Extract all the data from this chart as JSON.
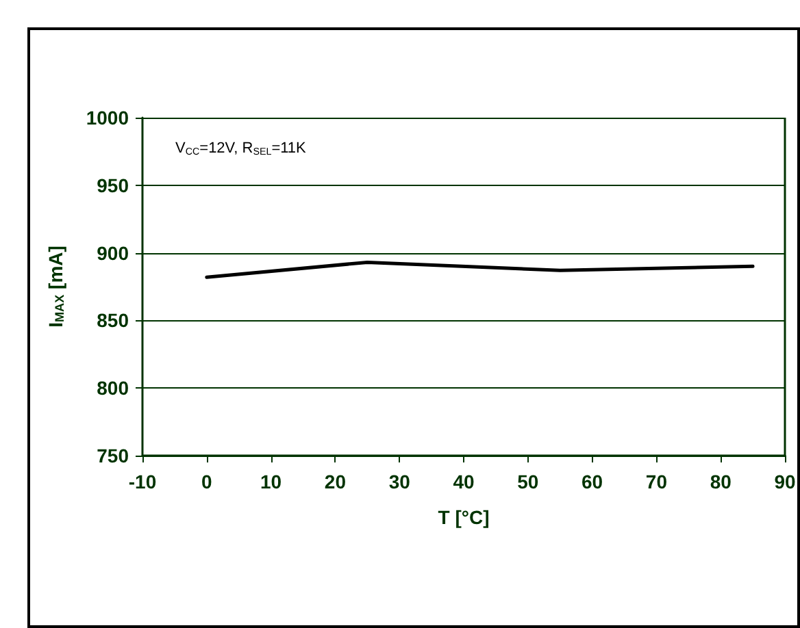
{
  "chart_data": {
    "type": "line",
    "xlabel": "T [°C]",
    "ylabel": "I$_{MAX}$ [mA]",
    "annotations": [
      "V$_{CC}$=12V, R$_{SEL}$=11K"
    ],
    "x": [
      0,
      25,
      55,
      85
    ],
    "series": [
      {
        "color": "#000000",
        "values": [
          882,
          893,
          887,
          890
        ]
      }
    ],
    "xlim": [
      -10,
      90
    ],
    "xticks": [
      -10,
      0,
      10,
      20,
      30,
      40,
      50,
      60,
      70,
      80,
      90
    ],
    "ylim": [
      750,
      1000
    ],
    "yticks": [
      750,
      800,
      850,
      900,
      950,
      1000
    ],
    "grid": "y",
    "marker": "none",
    "line_style": "solid"
  }
}
